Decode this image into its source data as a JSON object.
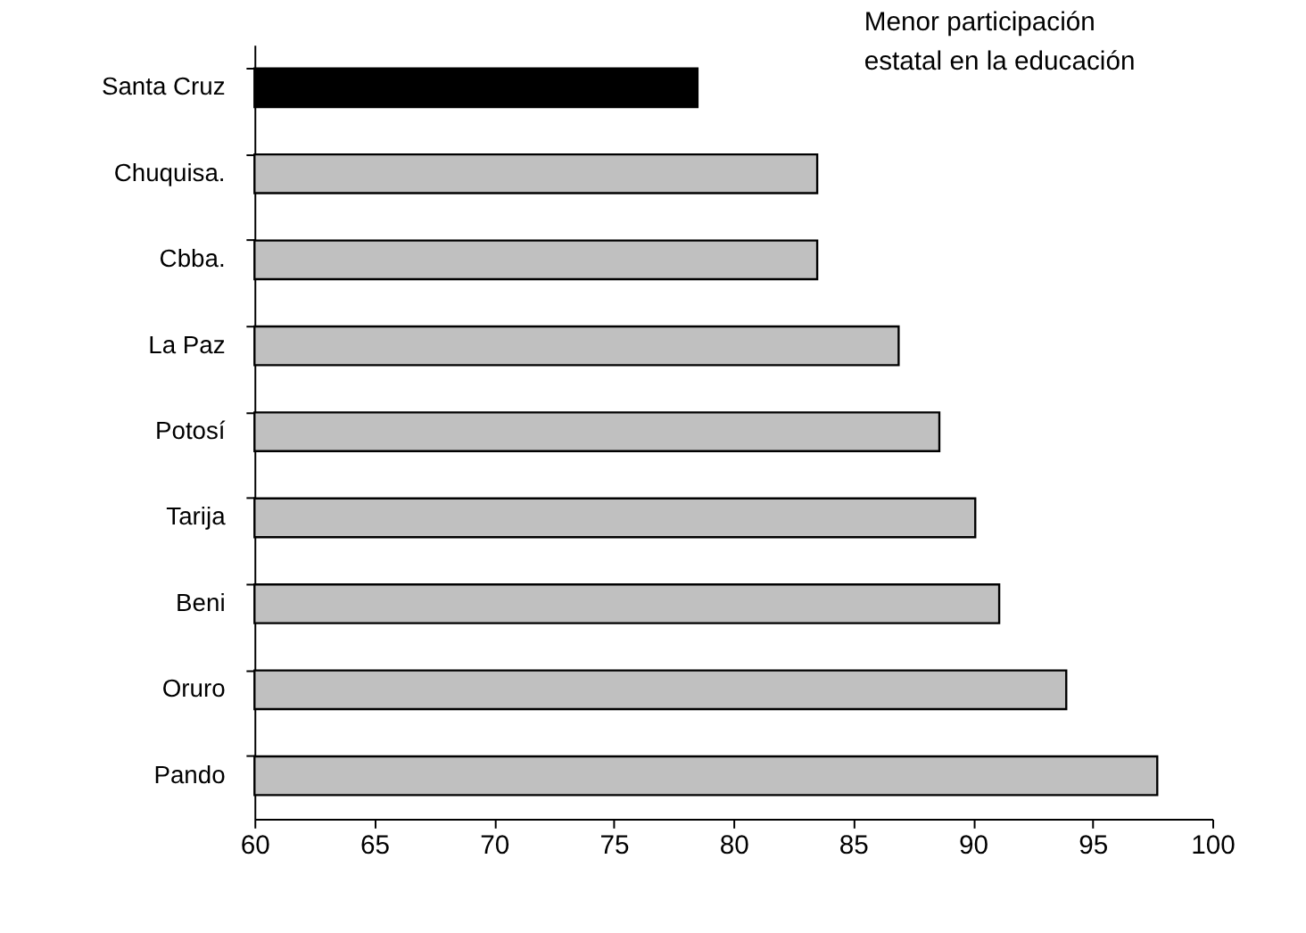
{
  "chart_data": {
    "type": "bar",
    "orientation": "horizontal",
    "categories": [
      "Santa Cruz",
      "Chuquisa.",
      "Cbba.",
      "La Paz",
      "Potosí",
      "Tarija",
      "Beni",
      "Oruro",
      "Pando"
    ],
    "values": [
      78.5,
      83.5,
      83.5,
      86.9,
      88.6,
      90.1,
      91.1,
      93.9,
      97.7
    ],
    "colors": [
      "#000000",
      "#c0c0c0",
      "#c0c0c0",
      "#c0c0c0",
      "#c0c0c0",
      "#c0c0c0",
      "#c0c0c0",
      "#c0c0c0",
      "#c0c0c0"
    ],
    "xlim": [
      60,
      100
    ],
    "xticks": [
      60,
      65,
      70,
      75,
      80,
      85,
      90,
      95,
      100
    ],
    "annotations": [
      "Menor participación\nestatal en la educación"
    ]
  }
}
